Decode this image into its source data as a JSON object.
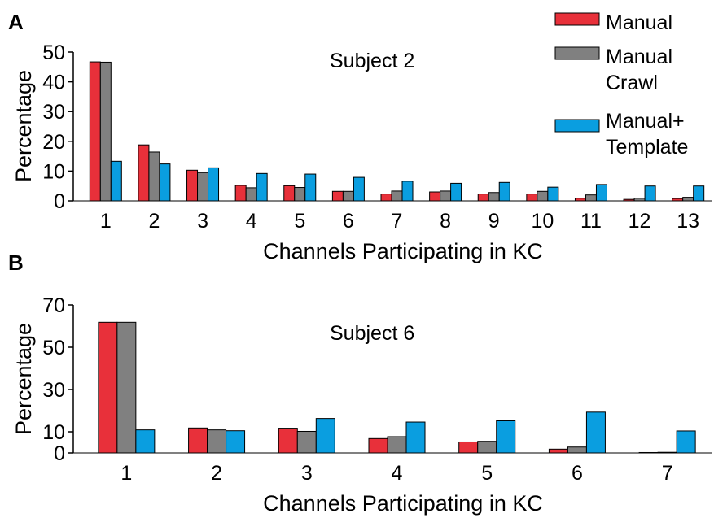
{
  "colors": {
    "manual": "#e8303a",
    "manual_crawl": "#808080",
    "manual_template": "#0a9ee0"
  },
  "legend": {
    "items": [
      {
        "lines": [
          "Manual"
        ],
        "color_key": "manual"
      },
      {
        "lines": [
          "Manual",
          "Crawl"
        ],
        "color_key": "manual_crawl"
      },
      {
        "lines": [
          "Manual+",
          "Template"
        ],
        "color_key": "manual_template"
      }
    ]
  },
  "chart_data": [
    {
      "panel": "A",
      "type": "bar",
      "title": "Subject 2",
      "xlabel": "Channels Participating in KC",
      "ylabel": "Percentage",
      "ylim": [
        0,
        50
      ],
      "yticks": [
        0,
        10,
        20,
        30,
        40,
        50
      ],
      "categories": [
        "1",
        "2",
        "3",
        "4",
        "5",
        "6",
        "7",
        "8",
        "9",
        "10",
        "11",
        "12",
        "13"
      ],
      "series": [
        {
          "name": "Manual",
          "color_key": "manual",
          "values": [
            46.7,
            18.8,
            10.3,
            5.2,
            5.1,
            3.2,
            2.3,
            3.0,
            2.3,
            2.3,
            0.9,
            0.5,
            0.8
          ]
        },
        {
          "name": "Manual Crawl",
          "color_key": "manual_crawl",
          "values": [
            46.6,
            16.4,
            9.5,
            4.4,
            4.5,
            3.2,
            3.3,
            3.3,
            2.8,
            3.2,
            2.0,
            0.9,
            1.2
          ]
        },
        {
          "name": "Manual+ Template",
          "color_key": "manual_template",
          "values": [
            13.3,
            12.4,
            11.1,
            9.2,
            9.0,
            7.9,
            6.6,
            5.9,
            6.2,
            4.6,
            5.5,
            5.0,
            5.0
          ]
        }
      ]
    },
    {
      "panel": "B",
      "type": "bar",
      "title": "Subject 6",
      "xlabel": "Channels Participating in KC",
      "ylabel": "Percentage",
      "ylim": [
        0,
        70
      ],
      "yticks": [
        0,
        10,
        30,
        50,
        70
      ],
      "categories": [
        "1",
        "2",
        "3",
        "4",
        "5",
        "6",
        "7"
      ],
      "series": [
        {
          "name": "Manual",
          "color_key": "manual",
          "values": [
            61.8,
            11.8,
            11.7,
            6.8,
            5.2,
            1.8,
            0.2
          ]
        },
        {
          "name": "Manual Crawl",
          "color_key": "manual_crawl",
          "values": [
            61.8,
            10.9,
            10.2,
            7.7,
            5.5,
            2.8,
            0.3
          ]
        },
        {
          "name": "Manual+ Template",
          "color_key": "manual_template",
          "values": [
            10.9,
            10.5,
            16.3,
            14.6,
            15.2,
            19.3,
            10.4
          ]
        }
      ]
    }
  ]
}
